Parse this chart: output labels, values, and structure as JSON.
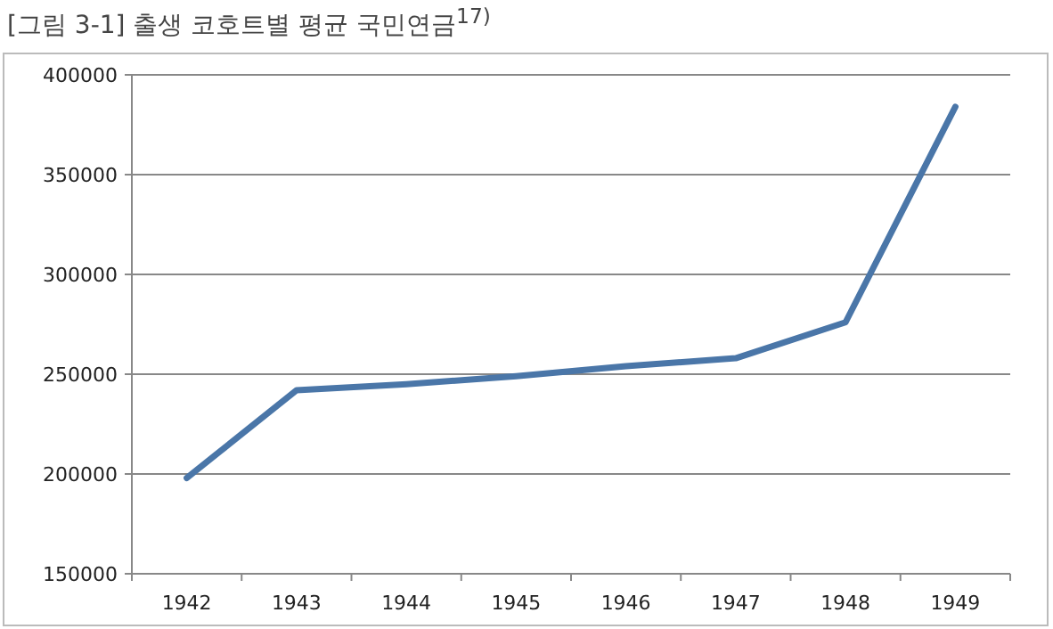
{
  "chart_data": {
    "type": "line",
    "title": "[그림 3-1] 출생 코호트별 평균 국민연금$^{17)}$",
    "categories": [
      "1942",
      "1943",
      "1944",
      "1945",
      "1946",
      "1947",
      "1948",
      "1949"
    ],
    "values": [
      198000,
      242000,
      245000,
      249000,
      254000,
      258000,
      276000,
      384000
    ],
    "color": "#4a76a8",
    "ylim": [
      150000,
      400000
    ],
    "yticks": [
      150000,
      200000,
      250000,
      300000,
      350000,
      400000
    ],
    "grid": "y",
    "marker": "none",
    "line_style": "solid"
  }
}
